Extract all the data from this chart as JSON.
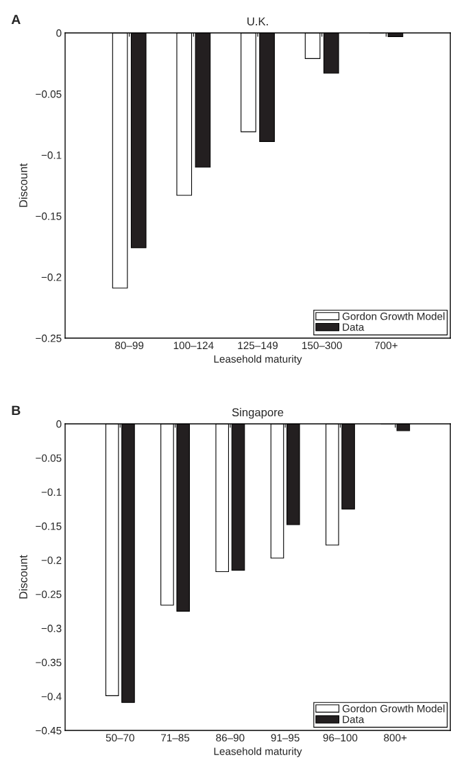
{
  "chart_data": [
    {
      "type": "bar",
      "title": "U.K.",
      "xlabel": "Leasehold maturity",
      "ylabel": "Discount",
      "annotations": [
        "A"
      ],
      "categories": [
        "80–99",
        "100–124",
        "125–149",
        "150–300",
        "700+"
      ],
      "series": [
        {
          "name": "Gordon Growth Model",
          "color": "#ffffff",
          "values": [
            -0.209,
            -0.133,
            -0.081,
            -0.021,
            null
          ]
        },
        {
          "name": "Data",
          "color": "#231f20",
          "values": [
            -0.176,
            -0.11,
            -0.089,
            -0.033,
            -0.003
          ]
        }
      ],
      "ylim": [
        -0.25,
        0
      ],
      "yticks": [
        -0.25,
        -0.2,
        -0.15,
        -0.1,
        -0.05,
        0
      ],
      "grid": false,
      "legend": "bottom right"
    },
    {
      "type": "bar",
      "title": "Singapore",
      "xlabel": "Leasehold maturity",
      "ylabel": "Discount",
      "annotations": [
        "B"
      ],
      "categories": [
        "50–70",
        "71–85",
        "86–90",
        "91–95",
        "96–100",
        "800+"
      ],
      "series": [
        {
          "name": "Gordon Growth Model",
          "color": "#ffffff",
          "values": [
            -0.399,
            -0.266,
            -0.217,
            -0.197,
            -0.178,
            null
          ]
        },
        {
          "name": "Data",
          "color": "#231f20",
          "values": [
            -0.409,
            -0.275,
            -0.215,
            -0.148,
            -0.125,
            -0.01
          ]
        }
      ],
      "ylim": [
        -0.45,
        0
      ],
      "yticks": [
        -0.45,
        -0.4,
        -0.35,
        -0.3,
        -0.25,
        -0.2,
        -0.15,
        -0.1,
        -0.05,
        0
      ],
      "grid": false,
      "legend": "bottom right"
    }
  ]
}
